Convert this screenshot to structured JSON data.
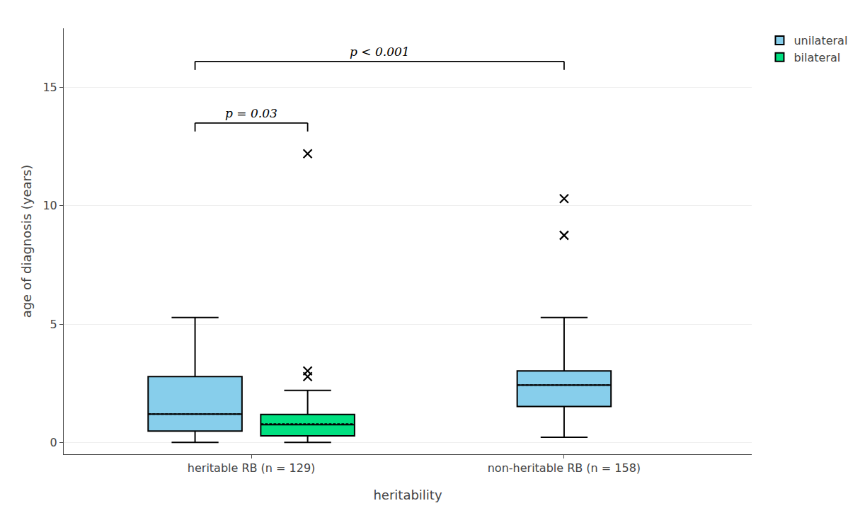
{
  "chart_data": {
    "type": "box",
    "xlabel": "heritability",
    "ylabel": "age of diagnosis (years)",
    "categories": [
      "heritable RB (n = 129)",
      "non-heritable RB (n = 158)"
    ],
    "series": [
      {
        "name": "unilateral",
        "color": "#87CEEB",
        "boxes": [
          {
            "q1": 0.48,
            "median": 1.2,
            "q3": 2.78,
            "whisker_low": 0.0,
            "whisker_high": 5.28,
            "mean": 1.2,
            "outliers": []
          },
          {
            "q1": 1.52,
            "median": 2.42,
            "q3": 3.02,
            "whisker_low": 0.22,
            "whisker_high": 5.28,
            "mean": 2.42,
            "outliers": [
              8.75,
              10.3
            ]
          }
        ]
      },
      {
        "name": "bilateral",
        "color": "#00E080",
        "boxes": [
          {
            "q1": 0.28,
            "median": 0.75,
            "q3": 1.18,
            "whisker_low": 0.0,
            "whisker_high": 2.2,
            "mean": 0.78,
            "outliers": [
              2.78,
              3.02,
              12.2
            ]
          },
          null
        ]
      }
    ],
    "annotations": [
      {
        "text": "p = 0.03",
        "y": 13.5,
        "from": {
          "category": "heritable RB (n = 129)",
          "series": "unilateral"
        },
        "to": {
          "category": "heritable RB (n = 129)",
          "series": "bilateral"
        }
      },
      {
        "text": "p < 0.001",
        "y": 16.1,
        "from": {
          "category": "heritable RB (n = 129)",
          "series": "unilateral"
        },
        "to": {
          "category": "non-heritable RB (n = 158)",
          "series": "unilateral"
        }
      }
    ],
    "ylim": [
      -0.5,
      17.5
    ],
    "yticks": [
      0,
      5,
      10,
      15
    ],
    "grid": true
  }
}
